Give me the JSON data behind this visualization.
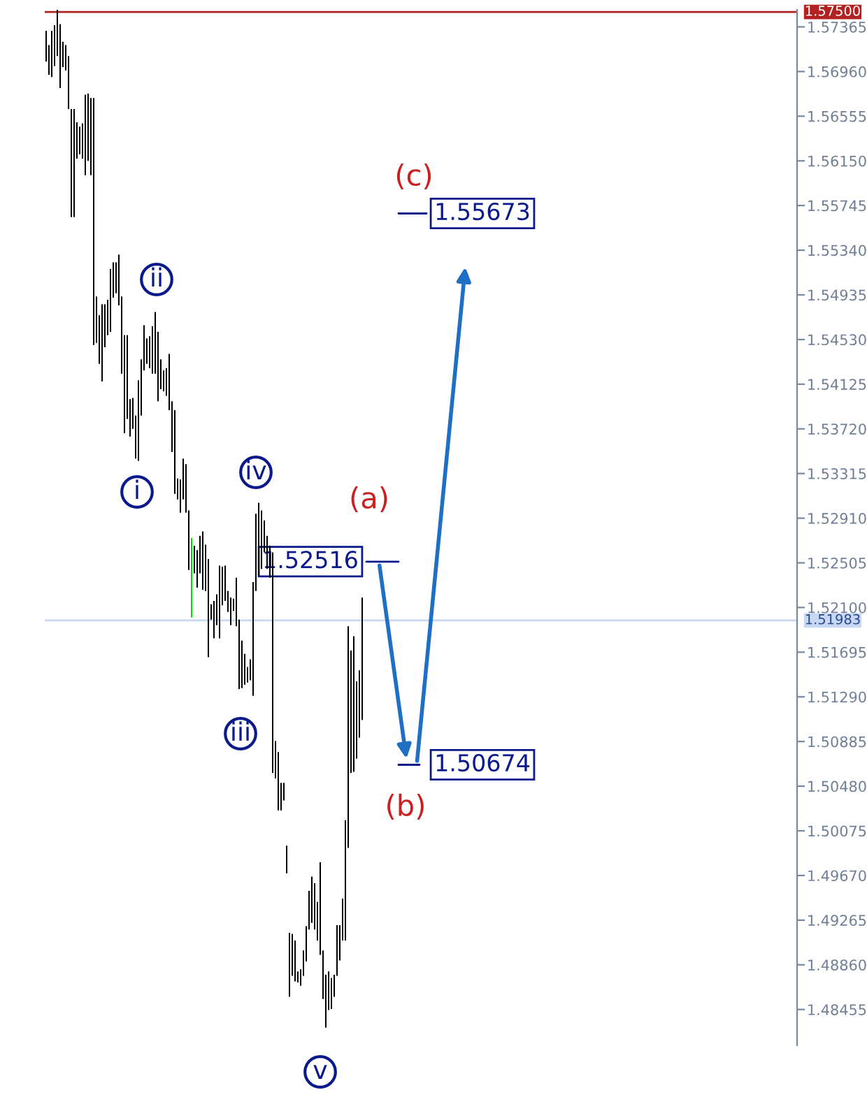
{
  "chart_data": {
    "type": "bar",
    "categories": [
      null,
      null,
      null,
      null,
      null,
      null,
      null,
      null,
      null,
      null,
      null,
      null,
      null,
      null,
      null,
      null,
      null,
      null,
      null,
      null,
      null,
      null,
      null,
      null,
      null,
      null,
      null,
      null,
      null,
      null,
      null,
      null,
      null,
      null,
      null,
      null,
      null,
      null,
      null,
      null,
      null,
      null,
      null,
      null,
      null,
      null,
      null,
      null,
      null,
      null,
      null,
      null,
      null,
      null,
      null,
      null,
      null,
      null,
      null,
      null,
      null,
      null,
      null,
      null,
      null,
      null,
      null,
      null,
      null,
      null,
      null,
      null,
      null,
      null,
      null,
      null,
      null,
      null,
      null,
      null,
      null,
      null,
      null,
      null,
      null,
      null,
      null,
      null,
      null,
      null,
      null,
      null,
      null,
      null,
      null,
      null,
      null,
      null,
      null,
      null,
      null,
      null,
      null,
      null,
      null,
      null,
      null,
      null,
      null,
      null,
      null,
      null,
      null,
      null,
      null,
      null,
      null,
      null,
      null,
      null,
      null,
      null,
      null,
      null,
      null,
      null,
      null,
      null,
      null,
      null,
      null,
      null,
      null,
      null,
      null,
      null,
      null,
      null,
      null,
      null,
      null,
      null,
      null,
      null,
      null,
      null,
      null,
      null,
      null,
      null,
      null,
      null,
      null,
      null,
      null,
      null,
      null,
      null,
      null,
      null,
      null,
      null,
      null,
      null,
      null,
      null,
      null,
      null,
      null,
      null,
      null,
      null,
      null,
      null,
      null,
      null,
      null,
      null,
      null,
      null,
      null,
      null,
      null,
      null,
      null,
      null,
      null,
      null,
      null,
      null,
      null,
      null,
      null,
      null,
      null,
      null,
      null,
      null,
      null,
      null,
      null,
      null,
      null,
      null,
      null,
      null,
      null,
      null,
      null,
      null,
      null,
      null,
      null,
      null,
      null,
      null,
      null,
      null,
      null,
      null,
      null,
      null,
      null,
      null,
      null,
      null,
      null,
      null,
      null,
      null,
      null,
      null,
      null,
      null,
      null,
      null,
      null,
      null,
      null,
      null,
      null,
      null,
      null,
      null,
      null,
      null,
      null,
      null,
      null,
      null,
      null,
      null,
      null,
      null,
      null,
      null,
      null,
      null,
      null,
      null,
      null,
      null,
      null,
      null,
      null,
      null,
      null,
      null,
      null
    ],
    "base": [
      1.5705,
      1.5693,
      1.5691,
      1.5701,
      1.571,
      1.5681,
      1.57,
      1.5697,
      1.5662,
      1.5564,
      1.5564,
      1.5617,
      1.5621,
      1.5617,
      1.5602,
      1.5615,
      1.5602,
      1.5448,
      1.545,
      1.5431,
      1.5415,
      1.5446,
      1.5457,
      1.546,
      1.5491,
      1.5495,
      1.5484,
      1.5422,
      1.5368,
      1.5381,
      1.5365,
      1.5372,
      1.5345,
      1.5343,
      1.5384,
      1.5425,
      1.5431,
      1.5427,
      1.5422,
      1.5422,
      1.5397,
      1.5408,
      1.5406,
      1.5402,
      1.5389,
      1.5351,
      1.5313,
      1.5308,
      1.5296,
      1.5308,
      1.5296,
      1.5244,
      1.5201,
      1.5241,
      1.5228,
      1.5241,
      1.5226,
      1.5225,
      1.5165,
      1.5199,
      1.5182,
      1.5194,
      1.5182,
      1.5212,
      1.5216,
      1.5206,
      1.5194,
      1.5207,
      1.5193,
      1.5136,
      1.5137,
      1.514,
      1.5142,
      1.5144,
      1.513,
      1.5225,
      1.5239,
      1.5245,
      1.526,
      1.5245,
      1.5237,
      1.506,
      1.5055,
      1.5026,
      1.5026,
      1.5035,
      1.4969,
      1.4857,
      1.4876,
      1.4871,
      1.487,
      1.4867,
      1.4876,
      1.4889,
      1.4918,
      1.4924,
      1.4918,
      1.4908,
      1.4895,
      1.4855,
      1.4829,
      1.4845,
      1.4846,
      1.4857,
      1.4876,
      1.489,
      1.4908,
      1.4908,
      1.4992,
      1.506,
      1.5061,
      1.5073,
      1.5092,
      1.5108,
      null,
      null,
      null,
      null,
      null,
      null,
      null,
      null,
      null,
      null,
      null,
      null,
      null,
      null,
      null,
      null,
      null,
      null,
      null,
      null,
      null,
      null,
      null,
      null,
      null,
      null,
      null,
      null,
      null,
      null,
      null,
      null,
      null,
      null,
      null,
      null,
      null,
      null,
      null,
      null,
      null,
      null,
      null,
      null,
      null,
      null,
      null,
      null,
      null,
      null,
      null,
      null,
      null,
      null,
      null,
      null,
      null,
      null,
      null,
      null,
      null,
      null,
      null,
      null,
      null,
      null,
      null,
      null,
      null,
      null,
      null,
      null,
      null,
      null,
      null,
      null,
      null,
      null,
      null,
      null,
      null,
      null,
      null,
      null,
      null,
      null,
      null,
      null,
      null,
      null,
      null,
      null,
      null,
      null,
      null,
      null,
      null,
      null,
      null,
      null,
      null,
      null,
      null,
      null,
      null,
      null,
      null,
      null,
      null,
      null,
      null,
      null,
      null,
      null,
      null,
      null,
      null,
      null,
      null,
      null,
      null,
      null,
      null,
      null,
      null,
      null,
      null,
      null,
      null,
      null,
      null,
      null,
      null,
      null,
      null,
      null,
      null,
      null,
      null,
      null,
      null,
      null,
      null,
      null,
      null,
      null,
      null,
      null,
      null,
      null,
      null,
      null,
      null,
      null,
      null
    ],
    "values": [
      0.0028,
      0.0027,
      0.0042,
      0.0037,
      0.0042,
      0.0058,
      0.0023,
      0.0023,
      0.0048,
      0.0098,
      0.0098,
      0.0033,
      0.0025,
      0.0032,
      0.0073,
      0.0061,
      0.007,
      0.0224,
      0.0042,
      0.0044,
      0.007,
      0.0039,
      0.0032,
      0.0057,
      0.0032,
      0.0028,
      0.0046,
      0.007,
      0.0089,
      0.0076,
      0.0034,
      0.0028,
      0.0039,
      0.0073,
      0.0051,
      0.0041,
      0.0023,
      0.0029,
      0.0043,
      0.0056,
      0.0063,
      0.0027,
      0.0019,
      0.0025,
      0.0051,
      0.0046,
      0.0076,
      0.0019,
      0.003,
      0.0037,
      0.0044,
      0.0054,
      0.0072,
      0.0025,
      0.0034,
      0.0034,
      0.0053,
      0.0042,
      0.0089,
      0.0014,
      0.0034,
      0.0028,
      0.0066,
      0.0035,
      0.0032,
      0.0019,
      0.0025,
      0.0011,
      0.0044,
      0.0063,
      0.0043,
      0.0028,
      0.0014,
      0.0019,
      0.0103,
      0.007,
      0.0066,
      0.0053,
      0.0029,
      0.003,
      0.0029,
      0.02,
      0.0034,
      0.0053,
      0.0025,
      0.0016,
      0.0025,
      0.0058,
      0.0038,
      0.0037,
      0.001,
      0.0015,
      0.0023,
      0.0032,
      0.0035,
      0.0042,
      0.0042,
      0.0035,
      0.0084,
      0.0044,
      0.0048,
      0.0035,
      0.0028,
      0.002,
      0.0046,
      0.0032,
      0.0038,
      0.0109,
      0.0201,
      0.0111,
      0.0123,
      0.007,
      0.0061,
      0.0111,
      null,
      null,
      null,
      null,
      null,
      null,
      null,
      null,
      null,
      null,
      null,
      null,
      null,
      null,
      null,
      null,
      null,
      null,
      null,
      null,
      null,
      null,
      null,
      null,
      null,
      null,
      null,
      null,
      null,
      null,
      null,
      null,
      null,
      null,
      null,
      null,
      null,
      null,
      null,
      null,
      null,
      null,
      null,
      null,
      null,
      null,
      null,
      null,
      null,
      null,
      null,
      null,
      null,
      null,
      null,
      null,
      null,
      null,
      null,
      null,
      null,
      null,
      null,
      null,
      null,
      null,
      null,
      null,
      null,
      null,
      null,
      null,
      null,
      null,
      null,
      null,
      null,
      null,
      null,
      null,
      null,
      null,
      null,
      null,
      null,
      null,
      null,
      null,
      null,
      null,
      null,
      null,
      null,
      null,
      null,
      null,
      null,
      null,
      null,
      null,
      null,
      null,
      null,
      null,
      null,
      null,
      null,
      null,
      null,
      null,
      null,
      null,
      null,
      null,
      null,
      null,
      null,
      null,
      null,
      null,
      null,
      null,
      null,
      null,
      null,
      null,
      null,
      null,
      null,
      null,
      null,
      null,
      null,
      null,
      null,
      null,
      null,
      null,
      null,
      null,
      null,
      null,
      null,
      null,
      null,
      null,
      null,
      null,
      null,
      null,
      null,
      null,
      null,
      null,
      null
    ],
    "colors": [
      "#000000",
      "#000000",
      "#000000",
      "#000000",
      "#000000",
      "#000000",
      "#000000",
      "#000000",
      "#000000",
      "#000000",
      "#000000",
      "#000000",
      "#000000",
      "#000000",
      "#000000",
      "#000000",
      "#000000",
      "#000000",
      "#000000",
      "#000000",
      "#000000",
      "#000000",
      "#000000",
      "#000000",
      "#000000",
      "#000000",
      "#000000",
      "#000000",
      "#000000",
      "#000000",
      "#000000",
      "#000000",
      "#000000",
      "#000000",
      "#000000",
      "#000000",
      "#000000",
      "#000000",
      "#000000",
      "#000000",
      "#000000",
      "#000000",
      "#000000",
      "#000000",
      "#000000",
      "#000000",
      "#000000",
      "#000000",
      "#000000",
      "#000000",
      "#000000",
      "#000000",
      "#00dd00",
      "#000000",
      "#000000",
      "#000000",
      "#000000",
      "#000000",
      "#000000",
      "#000000",
      "#000000",
      "#000000",
      "#000000",
      "#000000",
      "#000000",
      "#000000",
      "#000000",
      "#000000",
      "#000000",
      "#000000",
      "#000000",
      "#000000",
      "#000000",
      "#000000",
      "#000000",
      "#000000",
      "#000000",
      "#000000",
      "#000000",
      "#000000",
      "#000000",
      "#000000",
      "#000000",
      "#000000",
      "#000000",
      "#000000",
      "#000000",
      "#000000",
      "#000000",
      "#000000",
      "#000000",
      "#000000",
      "#000000",
      "#000000",
      "#000000",
      "#000000",
      "#000000",
      "#000000",
      "#000000",
      "#000000",
      "#000000",
      "#000000",
      "#000000",
      "#000000",
      "#000000",
      "#000000",
      "#000000",
      "#000000",
      "#000000",
      "#000000",
      "#000000",
      "#000000",
      "#000000",
      "#000000",
      null,
      null,
      null,
      null,
      null,
      null,
      null,
      null,
      null,
      null,
      null,
      null,
      null,
      null,
      null,
      null,
      null,
      null,
      null,
      null,
      null,
      null,
      null,
      null,
      null,
      null,
      null,
      null,
      null,
      null,
      null,
      null,
      null,
      null,
      null,
      null,
      null,
      null,
      null,
      null,
      null,
      null,
      null,
      null,
      null,
      null,
      null,
      null,
      null,
      null,
      null,
      null,
      null,
      null,
      null,
      null,
      null,
      null,
      null,
      null,
      null,
      null,
      null,
      null,
      null,
      null,
      null,
      null,
      null,
      null,
      null,
      null,
      null,
      null,
      null,
      null,
      null,
      null,
      null,
      null,
      null,
      null,
      null,
      null,
      null,
      null,
      null,
      null,
      null,
      null,
      null,
      null,
      null,
      null,
      null,
      null,
      null,
      null,
      null,
      null,
      null,
      null,
      null,
      null,
      null,
      null,
      null,
      null,
      null,
      null,
      null,
      null,
      null,
      null,
      null,
      null,
      null,
      null,
      null,
      null,
      null,
      null,
      null,
      null,
      null,
      null,
      null,
      null,
      null,
      null,
      null,
      null,
      null,
      null,
      null,
      null,
      null,
      null,
      null,
      null,
      null,
      null,
      null,
      null,
      null,
      null,
      null,
      null,
      null,
      null,
      null,
      null,
      null,
      null,
      null
    ],
    "ylim": [
      1.4813,
      1.5752
    ],
    "yticks": [
      {
        "value": 1.57365,
        "label": "1.57365"
      },
      {
        "value": 1.5696,
        "label": "1.56960"
      },
      {
        "value": 1.56555,
        "label": "1.56555"
      },
      {
        "value": 1.5615,
        "label": "1.56150"
      },
      {
        "value": 1.55745,
        "label": "1.55745"
      },
      {
        "value": 1.5534,
        "label": "1.55340"
      },
      {
        "value": 1.54935,
        "label": "1.54935"
      },
      {
        "value": 1.5453,
        "label": "1.54530"
      },
      {
        "value": 1.54125,
        "label": "1.54125"
      },
      {
        "value": 1.5372,
        "label": "1.53720"
      },
      {
        "value": 1.53315,
        "label": "1.53315"
      },
      {
        "value": 1.5291,
        "label": "1.52910"
      },
      {
        "value": 1.52505,
        "label": "1.52505"
      },
      {
        "value": 1.521,
        "label": "1.52100"
      },
      {
        "value": 1.51695,
        "label": "1.51695"
      },
      {
        "value": 1.5129,
        "label": "1.51290"
      },
      {
        "value": 1.50885,
        "label": "1.50885"
      },
      {
        "value": 1.5048,
        "label": "1.50480"
      },
      {
        "value": 1.50075,
        "label": "1.50075"
      },
      {
        "value": 1.4967,
        "label": "1.49670"
      },
      {
        "value": 1.49265,
        "label": "1.49265"
      },
      {
        "value": 1.4886,
        "label": "1.48860"
      },
      {
        "value": 1.48455,
        "label": "1.48455"
      }
    ],
    "tick_labels": "y",
    "ref_lines": [
      {
        "axis": "y",
        "value": 1.575,
        "label": "1.57500",
        "color": "#b22222"
      },
      {
        "axis": "y",
        "value": 1.51983,
        "label": "1.51983",
        "color": "#c8d8f4"
      },
      {
        "axis": "y",
        "value": 1.52516,
        "label": "1.52516",
        "color": "#0a1a8a"
      },
      {
        "axis": "y",
        "value": 1.50674,
        "label": "1.50674",
        "color": "#0a1a8a"
      },
      {
        "axis": "y",
        "value": 1.55673,
        "label": "1.55673",
        "color": "#0a1a8a"
      }
    ],
    "annotations": [
      "i",
      "ii",
      "iii",
      "iv",
      "v",
      "(a)",
      "(b)",
      "(c)"
    ]
  }
}
